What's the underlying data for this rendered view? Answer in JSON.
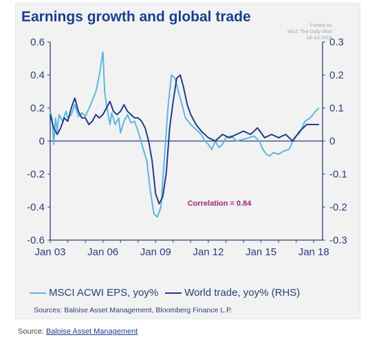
{
  "title": "Earnings growth and global trade",
  "posted": {
    "line1": "Posted on",
    "line2": "WSJ: The Daily Shot",
    "line3": "18-Jul-2018"
  },
  "colors": {
    "title": "#1a3f8f",
    "eps": "#5bb7dd",
    "trade": "#213a8c",
    "annotation": "#a0237f",
    "axis": "#2a3f7a"
  },
  "chart_data": {
    "type": "line",
    "title": "Earnings growth and global trade",
    "x_ticks": [
      "Jan 03",
      "Jan 06",
      "Jan 09",
      "Jan 12",
      "Jan 15",
      "Jan 18"
    ],
    "xlim": [
      2003,
      2018.5
    ],
    "y_left": {
      "ticks": [
        "0.6",
        "0.4",
        "0.2",
        "0",
        "-0.2",
        "-0.4",
        "-0.6"
      ],
      "ylim": [
        -0.6,
        0.6
      ]
    },
    "y_right": {
      "ticks": [
        "0.3",
        "0.2",
        "0.1",
        "0",
        "-0.1",
        "-0.2",
        "-0.3"
      ],
      "ylim": [
        -0.3,
        0.3
      ]
    },
    "annotation": "Correlation = 0.84",
    "grid": false,
    "legend_position": "bottom",
    "series": [
      {
        "name": "MSCI ACWI EPS, yoy%",
        "axis": "left",
        "color": "#5bb7dd",
        "x": [
          2003.0,
          2003.1,
          2003.2,
          2003.3,
          2003.4,
          2003.5,
          2003.7,
          2003.9,
          2004.0,
          2004.2,
          2004.4,
          2004.6,
          2004.8,
          2005.0,
          2005.3,
          2005.6,
          2005.8,
          2006.0,
          2006.1,
          2006.2,
          2006.3,
          2006.4,
          2006.5,
          2006.7,
          2006.9,
          2007.0,
          2007.2,
          2007.4,
          2007.6,
          2007.8,
          2008.0,
          2008.3,
          2008.5,
          2008.7,
          2008.9,
          2009.1,
          2009.3,
          2009.5,
          2009.7,
          2009.9,
          2010.1,
          2010.3,
          2010.5,
          2010.7,
          2011.0,
          2011.2,
          2011.4,
          2011.6,
          2011.8,
          2012.0,
          2012.2,
          2012.4,
          2012.6,
          2012.8,
          2013.0,
          2013.3,
          2013.6,
          2014.0,
          2014.3,
          2014.6,
          2014.9,
          2015.1,
          2015.3,
          2015.5,
          2015.7,
          2016.0,
          2016.3,
          2016.6,
          2016.9,
          2017.2,
          2017.5,
          2017.8,
          2018.1,
          2018.3
        ],
        "y": [
          0.18,
          0.14,
          -0.02,
          0.14,
          0.06,
          0.16,
          0.12,
          0.18,
          0.14,
          0.16,
          0.22,
          0.15,
          0.17,
          0.15,
          0.22,
          0.3,
          0.4,
          0.54,
          0.3,
          0.22,
          0.16,
          0.1,
          0.17,
          0.1,
          0.14,
          0.05,
          0.12,
          0.16,
          0.11,
          0.12,
          0.06,
          -0.05,
          -0.12,
          -0.3,
          -0.44,
          -0.46,
          -0.4,
          -0.1,
          0.2,
          0.4,
          0.38,
          0.3,
          0.22,
          0.14,
          0.1,
          0.08,
          0.06,
          0.04,
          0.0,
          -0.02,
          -0.05,
          0.0,
          -0.04,
          -0.02,
          0.02,
          0.03,
          0.0,
          0.01,
          0.02,
          0.03,
          0.0,
          -0.05,
          -0.08,
          -0.09,
          -0.07,
          -0.08,
          -0.06,
          -0.05,
          0.02,
          0.05,
          0.12,
          0.14,
          0.18,
          0.2
        ]
      },
      {
        "name": "World trade, yoy% (RHS)",
        "axis": "right",
        "color": "#213a8c",
        "x": [
          2003.0,
          2003.2,
          2003.4,
          2003.6,
          2003.8,
          2004.0,
          2004.2,
          2004.4,
          2004.6,
          2004.8,
          2005.0,
          2005.2,
          2005.4,
          2005.6,
          2005.8,
          2006.0,
          2006.2,
          2006.4,
          2006.6,
          2006.8,
          2007.0,
          2007.2,
          2007.4,
          2007.6,
          2007.8,
          2008.0,
          2008.2,
          2008.4,
          2008.6,
          2008.8,
          2009.0,
          2009.2,
          2009.4,
          2009.6,
          2009.8,
          2010.0,
          2010.2,
          2010.4,
          2010.6,
          2010.8,
          2011.0,
          2011.3,
          2011.6,
          2012.0,
          2012.4,
          2012.8,
          2013.2,
          2013.6,
          2014.0,
          2014.4,
          2014.8,
          2015.2,
          2015.6,
          2016.0,
          2016.4,
          2016.8,
          2017.2,
          2017.6,
          2018.0,
          2018.3
        ],
        "y": [
          0.08,
          0.04,
          0.02,
          0.04,
          0.07,
          0.06,
          0.1,
          0.13,
          0.09,
          0.07,
          0.07,
          0.05,
          0.06,
          0.08,
          0.07,
          0.08,
          0.1,
          0.12,
          0.09,
          0.08,
          0.09,
          0.11,
          0.09,
          0.08,
          0.07,
          0.07,
          0.06,
          0.04,
          0.0,
          -0.06,
          -0.16,
          -0.19,
          -0.17,
          -0.1,
          0.04,
          0.12,
          0.19,
          0.2,
          0.16,
          0.11,
          0.08,
          0.05,
          0.03,
          0.01,
          0.0,
          0.02,
          0.01,
          0.02,
          0.03,
          0.02,
          0.04,
          0.01,
          0.02,
          0.01,
          0.02,
          0.0,
          0.03,
          0.05,
          0.05,
          0.05
        ]
      }
    ]
  },
  "legend": {
    "eps_label": "MSCI ACWI EPS, yoy%",
    "trade_label": "World trade, yoy% (RHS)"
  },
  "sources": "Sources: Baloise Asset Management, Bloomberg Finance L.P.",
  "footer": {
    "prefix": "Source: ",
    "link": "Baloise Asset Management"
  }
}
